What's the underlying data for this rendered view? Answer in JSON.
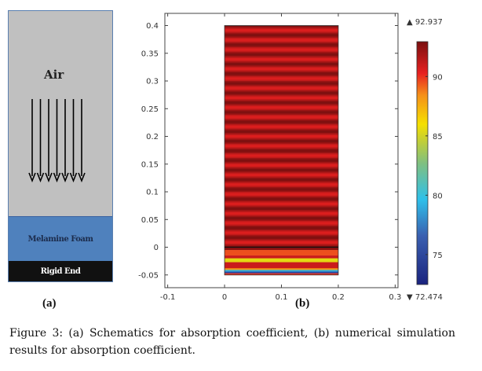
{
  "schematic": {
    "air_label": "Air",
    "foam_label": "Melamine Foam",
    "rigid_label": "Rigid End",
    "arrow_count": 7,
    "colors": {
      "air": "#c0c0c0",
      "foam": "#4f81bd",
      "rigid": "#111111"
    }
  },
  "panel_labels": {
    "a": "(a)",
    "b": "(b)"
  },
  "caption": {
    "figure_label": "Figure 3",
    "text": ": (a) Schematics for absorption coefficient, (b) numerical simulation results for absorption coefficient."
  },
  "chart_data": {
    "type": "heatmap",
    "title": "",
    "xlabel": "",
    "ylabel": "",
    "xlim": [
      -0.105,
      0.305
    ],
    "ylim": [
      -0.073,
      0.422
    ],
    "x_ticks": [
      "-0.1",
      "0",
      "0.1",
      "0.2",
      "0.3"
    ],
    "x_tick_values": [
      -0.1,
      0,
      0.1,
      0.2,
      0.3
    ],
    "y_ticks": [
      "0.4",
      "0.35",
      "0.3",
      "0.25",
      "0.2",
      "0.15",
      "0.1",
      "0.05",
      "0",
      "-0.05"
    ],
    "y_tick_values": [
      0.4,
      0.35,
      0.3,
      0.25,
      0.2,
      0.15,
      0.1,
      0.05,
      0,
      -0.05
    ],
    "domain": {
      "x": [
        0,
        0.2
      ],
      "y": [
        -0.05,
        0.4
      ],
      "interface_y": 0
    },
    "air_stripes": {
      "count": 23,
      "min_value": 90.5,
      "max_value": 92.9
    },
    "foam_bands": [
      {
        "y": [
          -0.005,
          0
        ],
        "value": 92.5
      },
      {
        "y": [
          -0.015,
          -0.005
        ],
        "value": 89.5
      },
      {
        "y": [
          -0.02,
          -0.015
        ],
        "value": 91
      },
      {
        "y": [
          -0.027,
          -0.02
        ],
        "value": 85.5
      },
      {
        "y": [
          -0.038,
          -0.027
        ],
        "value": 91
      },
      {
        "y": [
          -0.041,
          -0.038
        ],
        "value": 88
      },
      {
        "y": [
          -0.044,
          -0.041
        ],
        "value": 79
      },
      {
        "y": [
          -0.047,
          -0.044
        ],
        "value": 75
      },
      {
        "y": [
          -0.05,
          -0.047
        ],
        "value": 90
      }
    ],
    "colorbar": {
      "max_label": "▲ 92.937",
      "min_label": "▼ 72.474",
      "max": 92.937,
      "min": 72.474,
      "ticks": [
        "90",
        "85",
        "80",
        "75"
      ],
      "tick_values": [
        90,
        85,
        80,
        75
      ]
    }
  }
}
